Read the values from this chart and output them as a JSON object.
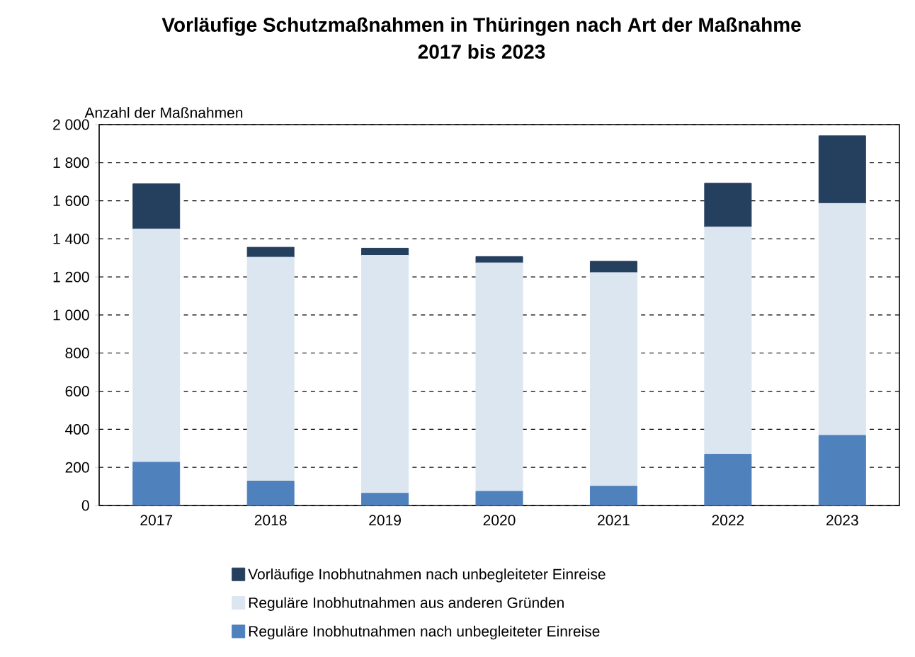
{
  "chart_data": {
    "type": "bar",
    "title": "Vorläufige Schutzmaßnahmen in Thüringen nach Art der Maßnahme\n2017 bis 2023",
    "ylabel": "Anzahl der Maßnahmen",
    "categories": [
      "2017",
      "2018",
      "2019",
      "2020",
      "2021",
      "2022",
      "2023"
    ],
    "stacked": true,
    "series": [
      {
        "name": "Reguläre Inobhutnahmen nach unbegleiteter Einreise",
        "color": "#4f81bd",
        "values": [
          227,
          128,
          64,
          74,
          101,
          269,
          368
        ]
      },
      {
        "name": "Reguläre Inobhutnahmen aus anderen Gründen",
        "color": "#dce6f0",
        "values": [
          1225,
          1176,
          1250,
          1200,
          1122,
          1193,
          1218
        ]
      },
      {
        "name": "Vorläufige Inobhutnahmen nach unbegleiteter Einreise",
        "color": "#253f5e",
        "values": [
          237,
          52,
          37,
          33,
          59,
          230,
          355
        ]
      }
    ],
    "ylim": [
      0,
      2000
    ],
    "yticks": [
      0,
      200,
      400,
      600,
      800,
      {
        "value": 1000,
        "label": "1 000"
      },
      {
        "value": 1200,
        "label": "1 200"
      },
      {
        "value": 1400,
        "label": "1 400"
      },
      {
        "value": 1600,
        "label": "1 600"
      },
      {
        "value": 1800,
        "label": "1 800"
      },
      {
        "value": 2000,
        "label": "2 000"
      }
    ],
    "grid": "y",
    "legend": "bottom"
  }
}
